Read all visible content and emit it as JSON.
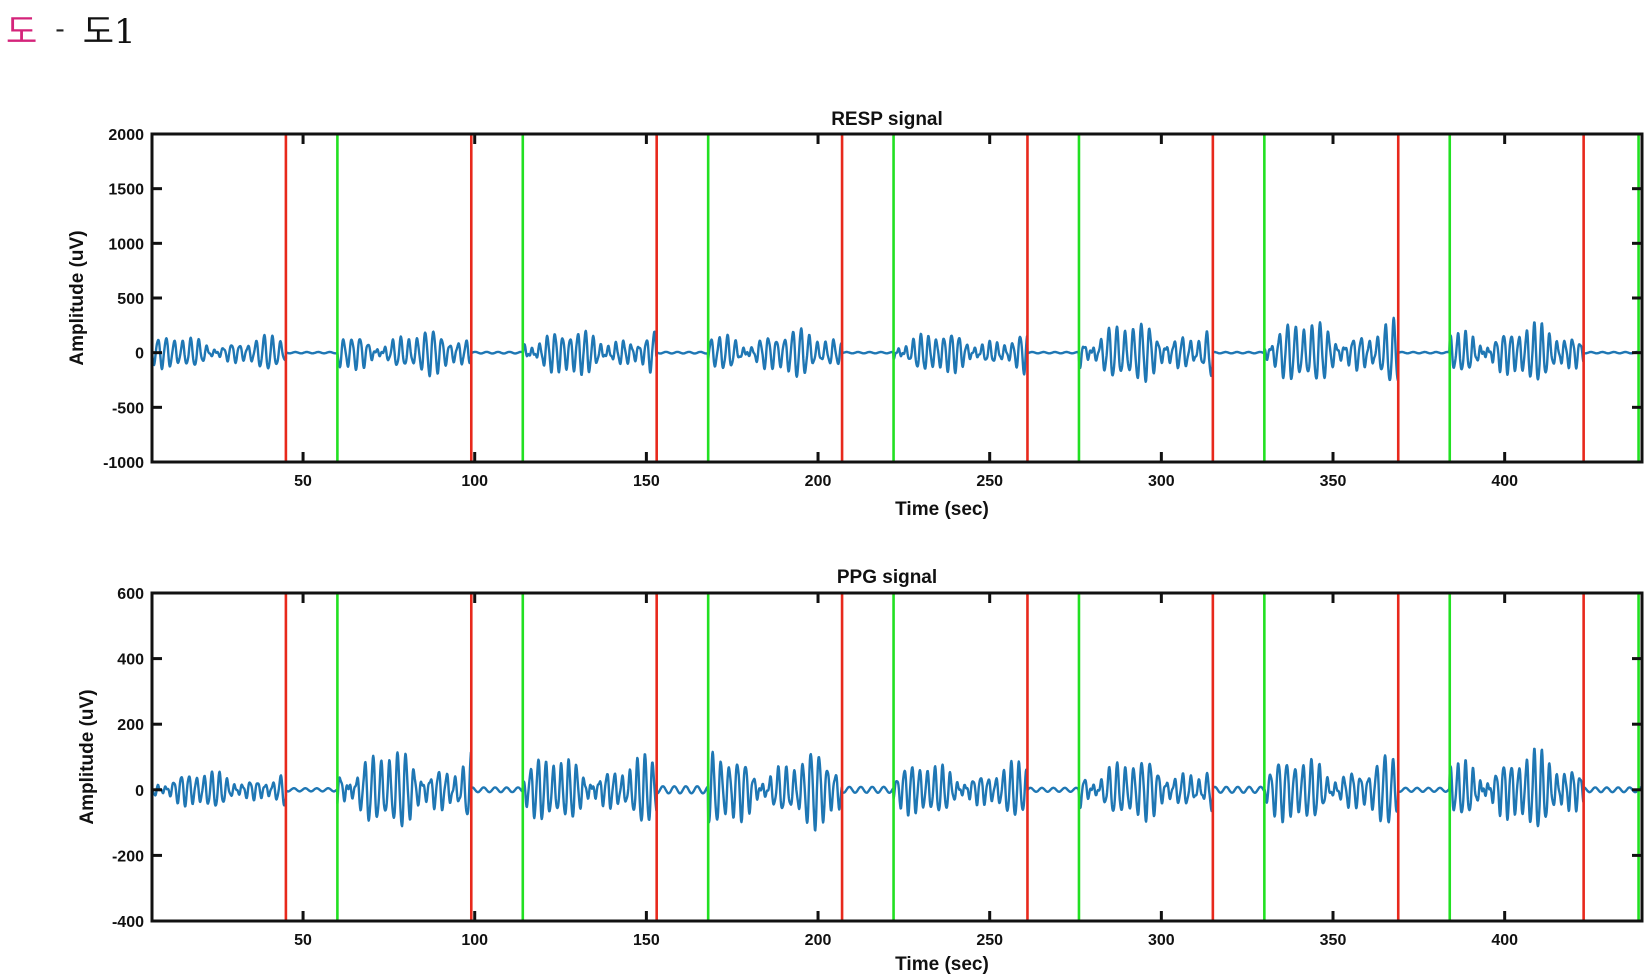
{
  "header": {
    "glyph": "도",
    "separator": "-",
    "label": "도1"
  },
  "colors": {
    "signal": "#1f77b4",
    "red_marker": "#e8291c",
    "green_marker": "#22e022",
    "axis": "#111111"
  },
  "chart_data": [
    {
      "type": "line",
      "title": "RESP signal",
      "xlabel": "Time (sec)",
      "ylabel": "Amplitude (uV)",
      "xlim": [
        6,
        440
      ],
      "ylim": [
        -1000,
        2000
      ],
      "xticks": [
        50,
        100,
        150,
        200,
        250,
        300,
        350,
        400
      ],
      "yticks": [
        -1000,
        -500,
        0,
        500,
        1000,
        1500,
        2000
      ],
      "grid": false,
      "series": [
        {
          "segments": [
            {
              "start": 6,
              "end": 45,
              "active": true,
              "amp": 120,
              "freq": 0.42
            },
            {
              "start": 45,
              "end": 60,
              "active": false,
              "amp": 10,
              "freq": 0.3
            },
            {
              "start": 60,
              "end": 99,
              "active": true,
              "amp": 160,
              "freq": 0.42
            },
            {
              "start": 99,
              "end": 114,
              "active": false,
              "amp": 12,
              "freq": 0.3
            },
            {
              "start": 114,
              "end": 153,
              "active": true,
              "amp": 170,
              "freq": 0.45
            },
            {
              "start": 153,
              "end": 168,
              "active": false,
              "amp": 12,
              "freq": 0.3
            },
            {
              "start": 168,
              "end": 207,
              "active": true,
              "amp": 170,
              "freq": 0.42
            },
            {
              "start": 207,
              "end": 222,
              "active": false,
              "amp": 10,
              "freq": 0.3
            },
            {
              "start": 222,
              "end": 261,
              "active": true,
              "amp": 150,
              "freq": 0.45
            },
            {
              "start": 261,
              "end": 276,
              "active": false,
              "amp": 10,
              "freq": 0.3
            },
            {
              "start": 276,
              "end": 315,
              "active": true,
              "amp": 220,
              "freq": 0.42
            },
            {
              "start": 315,
              "end": 330,
              "active": false,
              "amp": 10,
              "freq": 0.3
            },
            {
              "start": 330,
              "end": 369,
              "active": true,
              "amp": 230,
              "freq": 0.42
            },
            {
              "start": 369,
              "end": 384,
              "active": false,
              "amp": 10,
              "freq": 0.3
            },
            {
              "start": 384,
              "end": 423,
              "active": true,
              "amp": 210,
              "freq": 0.45
            },
            {
              "start": 423,
              "end": 440,
              "active": false,
              "amp": 10,
              "freq": 0.3
            }
          ]
        }
      ],
      "markers": {
        "red": [
          45,
          99,
          153,
          207,
          261,
          315,
          369,
          423
        ],
        "green": [
          60,
          114,
          168,
          222,
          276,
          330,
          384,
          439
        ]
      }
    },
    {
      "type": "line",
      "title": "PPG signal",
      "xlabel": "Time (sec)",
      "ylabel": "Amplitude (uV)",
      "xlim": [
        6,
        440
      ],
      "ylim": [
        -400,
        600
      ],
      "xticks": [
        50,
        100,
        150,
        200,
        250,
        300,
        350,
        400
      ],
      "yticks": [
        -400,
        -200,
        0,
        200,
        400,
        600
      ],
      "grid": false,
      "series": [
        {
          "segments": [
            {
              "start": 6,
              "end": 45,
              "active": true,
              "amp": 45,
              "freq": 0.45
            },
            {
              "start": 45,
              "end": 60,
              "active": false,
              "amp": 8,
              "freq": 0.3
            },
            {
              "start": 60,
              "end": 99,
              "active": true,
              "amp": 95,
              "freq": 0.42
            },
            {
              "start": 99,
              "end": 114,
              "active": false,
              "amp": 12,
              "freq": 0.3
            },
            {
              "start": 114,
              "end": 153,
              "active": true,
              "amp": 80,
              "freq": 0.45
            },
            {
              "start": 153,
              "end": 168,
              "active": false,
              "amp": 18,
              "freq": 0.3
            },
            {
              "start": 168,
              "end": 207,
              "active": true,
              "amp": 90,
              "freq": 0.42
            },
            {
              "start": 207,
              "end": 222,
              "active": false,
              "amp": 15,
              "freq": 0.3
            },
            {
              "start": 222,
              "end": 261,
              "active": true,
              "amp": 65,
              "freq": 0.45
            },
            {
              "start": 261,
              "end": 276,
              "active": false,
              "amp": 10,
              "freq": 0.3
            },
            {
              "start": 276,
              "end": 315,
              "active": true,
              "amp": 75,
              "freq": 0.42
            },
            {
              "start": 315,
              "end": 330,
              "active": false,
              "amp": 15,
              "freq": 0.3
            },
            {
              "start": 330,
              "end": 369,
              "active": true,
              "amp": 80,
              "freq": 0.42
            },
            {
              "start": 369,
              "end": 384,
              "active": false,
              "amp": 10,
              "freq": 0.3
            },
            {
              "start": 384,
              "end": 423,
              "active": true,
              "amp": 95,
              "freq": 0.45
            },
            {
              "start": 423,
              "end": 440,
              "active": false,
              "amp": 12,
              "freq": 0.3
            }
          ]
        }
      ],
      "markers": {
        "red": [
          45,
          99,
          153,
          207,
          261,
          315,
          369,
          423
        ],
        "green": [
          60,
          114,
          168,
          222,
          276,
          330,
          384,
          439
        ]
      }
    }
  ]
}
